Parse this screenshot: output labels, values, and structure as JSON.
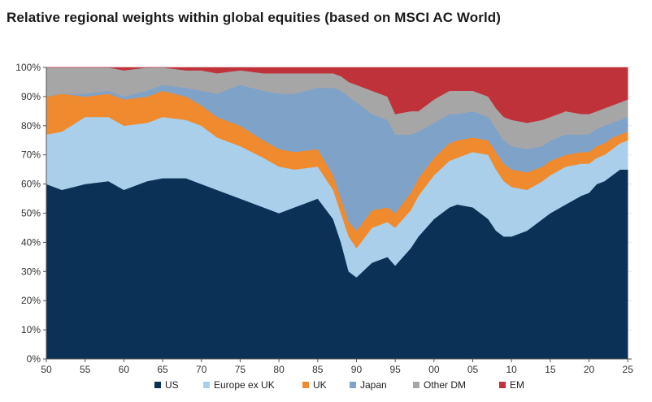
{
  "chart_data": {
    "type": "area",
    "stacked": true,
    "title": "Relative regional weights within global equities (based on MSCI AC World)",
    "xlabel": "",
    "ylabel": "",
    "x_ticks": [
      "50",
      "55",
      "60",
      "65",
      "70",
      "75",
      "80",
      "85",
      "90",
      "95",
      "00",
      "05",
      "10",
      "15",
      "20",
      "25"
    ],
    "y_ticks": [
      "0%",
      "10%",
      "20%",
      "30%",
      "40%",
      "50%",
      "60%",
      "70%",
      "80%",
      "90%",
      "100%"
    ],
    "ylim": [
      0,
      100
    ],
    "x": [
      1950,
      1952,
      1955,
      1958,
      1960,
      1963,
      1965,
      1968,
      1970,
      1972,
      1975,
      1978,
      1980,
      1982,
      1985,
      1987,
      1988,
      1989,
      1990,
      1992,
      1994,
      1995,
      1997,
      1998,
      2000,
      2002,
      2003,
      2005,
      2007,
      2008,
      2009,
      2010,
      2012,
      2014,
      2015,
      2017,
      2019,
      2020,
      2021,
      2022,
      2023,
      2024,
      2025
    ],
    "series": [
      {
        "name": "US",
        "color": "#0b3256",
        "values": [
          60,
          58,
          60,
          61,
          58,
          61,
          62,
          62,
          60,
          58,
          55,
          52,
          50,
          52,
          55,
          48,
          40,
          30,
          28,
          33,
          35,
          32,
          38,
          42,
          48,
          52,
          53,
          52,
          48,
          44,
          42,
          42,
          44,
          48,
          50,
          53,
          56,
          57,
          60,
          61,
          63,
          65,
          65
        ]
      },
      {
        "name": "Europe ex UK",
        "color": "#a9cfea",
        "values": [
          17,
          20,
          23,
          22,
          22,
          20,
          21,
          20,
          20,
          18,
          18,
          17,
          16,
          13,
          11,
          10,
          10,
          12,
          10,
          12,
          12,
          13,
          13,
          14,
          15,
          16,
          16,
          19,
          22,
          21,
          19,
          17,
          14,
          13,
          13,
          13,
          11,
          10,
          9,
          9,
          9,
          9,
          10
        ]
      },
      {
        "name": "UK",
        "color": "#f08a2e",
        "values": [
          13,
          13,
          7,
          8,
          9,
          9,
          9,
          8,
          7,
          7,
          7,
          6,
          6,
          6,
          6,
          5,
          5,
          5,
          6,
          6,
          5,
          5,
          6,
          6,
          6,
          6,
          6,
          5,
          5,
          6,
          6,
          6,
          6,
          5,
          5,
          4,
          4,
          4,
          4,
          4,
          4,
          3,
          3
        ]
      },
      {
        "name": "Japan",
        "color": "#7fa2c9",
        "values": [
          0,
          0,
          1,
          1,
          1,
          2,
          2,
          3,
          5,
          8,
          14,
          17,
          19,
          20,
          21,
          30,
          37,
          43,
          44,
          33,
          30,
          27,
          20,
          16,
          12,
          10,
          9,
          9,
          8,
          8,
          8,
          8,
          8,
          7,
          7,
          7,
          6,
          6,
          6,
          6,
          5,
          5,
          5
        ]
      },
      {
        "name": "Other DM",
        "color": "#a6a6a6",
        "values": [
          10,
          9,
          9,
          8,
          9,
          8,
          6,
          6,
          7,
          7,
          5,
          6,
          7,
          7,
          5,
          5,
          5,
          5,
          6,
          8,
          8,
          7,
          8,
          7,
          8,
          8,
          8,
          7,
          7,
          7,
          8,
          9,
          9,
          9,
          8,
          8,
          7,
          7,
          6,
          6,
          6,
          6,
          6
        ]
      },
      {
        "name": "EM",
        "color": "#c0323a",
        "values": [
          0,
          0,
          0,
          0,
          1,
          0,
          0,
          1,
          1,
          2,
          1,
          2,
          2,
          2,
          2,
          2,
          3,
          5,
          6,
          8,
          10,
          16,
          15,
          15,
          11,
          8,
          8,
          8,
          10,
          14,
          17,
          18,
          19,
          18,
          17,
          15,
          16,
          16,
          15,
          14,
          13,
          12,
          11
        ]
      }
    ]
  }
}
